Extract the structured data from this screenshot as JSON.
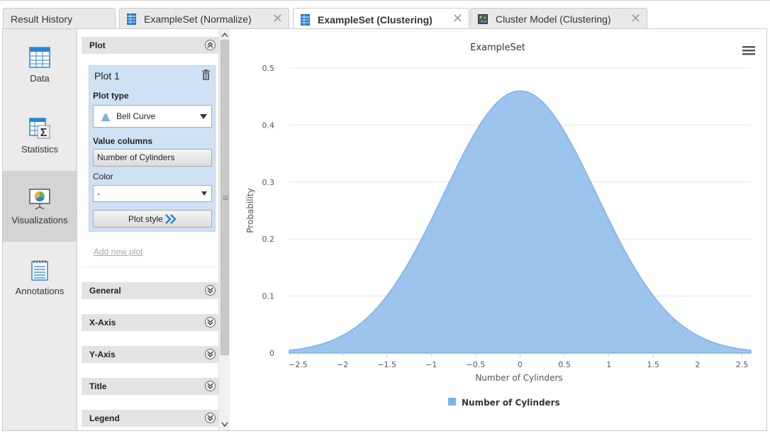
{
  "tabs": [
    {
      "label": "Result History",
      "icon": "none",
      "active": false,
      "closable": false
    },
    {
      "label": "ExampleSet (Normalize)",
      "icon": "table-icon",
      "active": false,
      "closable": true
    },
    {
      "label": "ExampleSet (Clustering)",
      "icon": "table-icon",
      "active": true,
      "closable": true
    },
    {
      "label": "Cluster Model (Clustering)",
      "icon": "cluster-model-icon",
      "active": false,
      "closable": true
    }
  ],
  "nav": [
    {
      "label": "Data",
      "icon": "data-table-icon",
      "active": false
    },
    {
      "label": "Statistics",
      "icon": "statistics-sigma-icon",
      "active": false
    },
    {
      "label": "Visualizations",
      "icon": "visualizations-chart-icon",
      "active": true
    },
    {
      "label": "Annotations",
      "icon": "annotations-notepad-icon",
      "active": false
    }
  ],
  "panel": {
    "plot_section": "Plot",
    "plot_title": "Plot 1",
    "plot_type_label": "Plot type",
    "plot_type_value": "Bell Curve",
    "value_columns_label": "Value columns",
    "value_columns_value": "Number of Cylinders",
    "color_label": "Color",
    "color_value": "-",
    "plot_style_label": "Plot style",
    "add_new_plot": "Add new plot",
    "sections": [
      "General",
      "X-Axis",
      "Y-Axis",
      "Title",
      "Legend"
    ]
  },
  "colors": {
    "accent_blue": "#2a83d4",
    "curve_fill": "#9cc4ed",
    "curve_stroke": "#7cb2e6",
    "plot_box": "#cfe1f4"
  },
  "chart_data": {
    "type": "area",
    "title": "ExampleSet",
    "xlabel": "Number of Cylinders",
    "ylabel": "Probability",
    "xlim": [
      -2.6,
      2.6
    ],
    "ylim": [
      0,
      0.5
    ],
    "x_ticks": [
      "-2.5",
      "-2",
      "-1.5",
      "-1",
      "-0.5",
      "0",
      "0.5",
      "1",
      "1.5",
      "2",
      "2.5"
    ],
    "y_ticks": [
      "0",
      "0.1",
      "0.2",
      "0.3",
      "0.4",
      "0.5"
    ],
    "grid": true,
    "legend_position": "bottom",
    "series": [
      {
        "name": "Number of Cylinders",
        "distribution": "normal",
        "mean": 0,
        "std": 0.86,
        "peak": 0.46,
        "x_range": [
          -2.6,
          2.6
        ]
      }
    ]
  }
}
